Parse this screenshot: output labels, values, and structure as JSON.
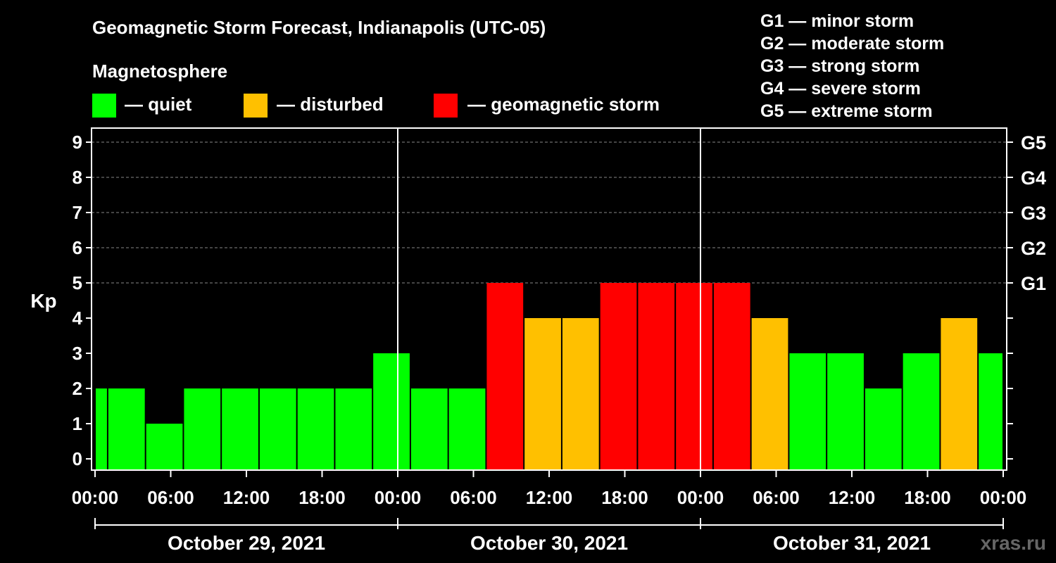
{
  "title": "Geomagnetic Storm Forecast, Indianapolis (UTC-05)",
  "legend": {
    "heading": "Magnetosphere",
    "items": [
      {
        "label": "— quiet",
        "color": "#00ff00"
      },
      {
        "label": "— disturbed",
        "color": "#ffc000"
      },
      {
        "label": "— geomagnetic storm",
        "color": "#ff0000"
      }
    ]
  },
  "g_scale": [
    "G1 — minor storm",
    "G2 — moderate storm",
    "G3 — strong storm",
    "G4 — severe storm",
    "G5 — extreme storm"
  ],
  "watermark": "xras.ru",
  "chart_data": {
    "type": "bar",
    "ylabel": "Kp",
    "ylim": [
      0,
      9
    ],
    "yticks": [
      "0",
      "1",
      "2",
      "3",
      "4",
      "5",
      "6",
      "7",
      "8",
      "9"
    ],
    "right_ticks": [
      {
        "kp": 5,
        "label": "G1"
      },
      {
        "kp": 6,
        "label": "G2"
      },
      {
        "kp": 7,
        "label": "G3"
      },
      {
        "kp": 8,
        "label": "G4"
      },
      {
        "kp": 9,
        "label": "G5"
      }
    ],
    "x_hours_range": [
      0,
      72
    ],
    "xticks": [
      "00:00",
      "06:00",
      "12:00",
      "18:00",
      "00:00",
      "06:00",
      "12:00",
      "18:00",
      "00:00",
      "06:00",
      "12:00",
      "18:00",
      "00:00"
    ],
    "days": [
      "October 29, 2021",
      "October 30, 2021",
      "October 31, 2021"
    ],
    "bars": [
      {
        "start": 0,
        "end": 1,
        "kp": 2
      },
      {
        "start": 1,
        "end": 4,
        "kp": 2
      },
      {
        "start": 4,
        "end": 7,
        "kp": 1
      },
      {
        "start": 7,
        "end": 10,
        "kp": 2
      },
      {
        "start": 10,
        "end": 13,
        "kp": 2
      },
      {
        "start": 13,
        "end": 16,
        "kp": 2
      },
      {
        "start": 16,
        "end": 19,
        "kp": 2
      },
      {
        "start": 19,
        "end": 22,
        "kp": 2
      },
      {
        "start": 22,
        "end": 25,
        "kp": 3
      },
      {
        "start": 25,
        "end": 28,
        "kp": 2
      },
      {
        "start": 28,
        "end": 31,
        "kp": 2
      },
      {
        "start": 31,
        "end": 34,
        "kp": 5
      },
      {
        "start": 34,
        "end": 37,
        "kp": 4
      },
      {
        "start": 37,
        "end": 40,
        "kp": 4
      },
      {
        "start": 40,
        "end": 43,
        "kp": 5
      },
      {
        "start": 43,
        "end": 46,
        "kp": 5
      },
      {
        "start": 46,
        "end": 49,
        "kp": 5
      },
      {
        "start": 49,
        "end": 52,
        "kp": 5
      },
      {
        "start": 52,
        "end": 55,
        "kp": 4
      },
      {
        "start": 55,
        "end": 58,
        "kp": 3
      },
      {
        "start": 58,
        "end": 61,
        "kp": 3
      },
      {
        "start": 61,
        "end": 64,
        "kp": 2
      },
      {
        "start": 64,
        "end": 67,
        "kp": 3
      },
      {
        "start": 67,
        "end": 70,
        "kp": 4
      },
      {
        "start": 70,
        "end": 72,
        "kp": 3
      }
    ]
  }
}
